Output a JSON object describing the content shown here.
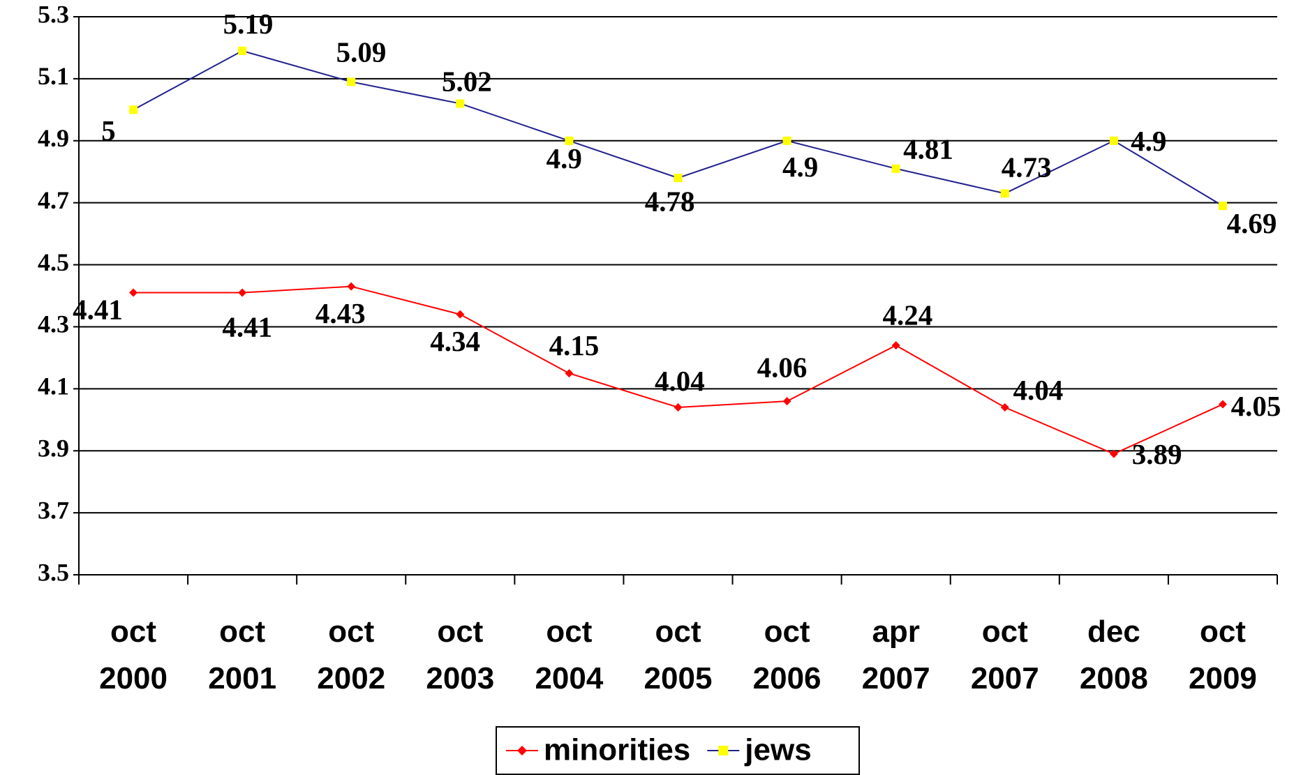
{
  "chart_data": {
    "type": "line",
    "categories": [
      [
        "oct",
        "2000"
      ],
      [
        "oct",
        "2001"
      ],
      [
        "oct",
        "2002"
      ],
      [
        "oct",
        "2003"
      ],
      [
        "oct",
        "2004"
      ],
      [
        "oct",
        "2005"
      ],
      [
        "oct",
        "2006"
      ],
      [
        "apr",
        "2007"
      ],
      [
        "oct",
        "2007"
      ],
      [
        "dec",
        "2008"
      ],
      [
        "oct",
        "2009"
      ]
    ],
    "series": [
      {
        "name": "minorities",
        "color": "#ff0000",
        "marker": "diamond",
        "values": [
          4.41,
          4.41,
          4.43,
          4.34,
          4.15,
          4.04,
          4.06,
          4.24,
          4.04,
          3.89,
          4.05
        ]
      },
      {
        "name": "jews",
        "color": "#1f1f8f",
        "marker_color": "#ffff00",
        "marker": "square",
        "values": [
          5,
          5.19,
          5.09,
          5.02,
          4.9,
          4.78,
          4.9,
          4.81,
          4.73,
          4.9,
          4.69
        ]
      }
    ],
    "ylim": [
      3.5,
      5.3
    ],
    "yticks": [
      3.5,
      3.7,
      3.9,
      4.1,
      4.3,
      4.5,
      4.7,
      4.9,
      5.1,
      5.3
    ],
    "grid": true,
    "legend": "bottom"
  }
}
